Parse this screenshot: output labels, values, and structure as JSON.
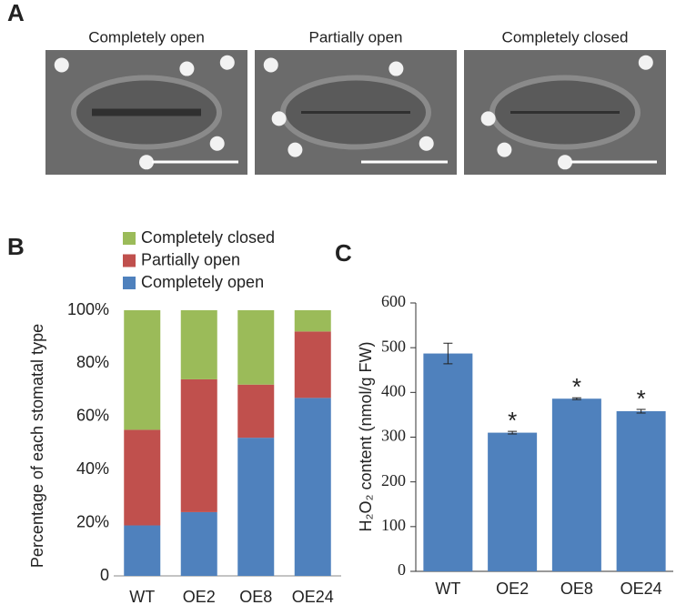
{
  "panels": {
    "a": {
      "letter": "A",
      "images": [
        "Completely open",
        "Partially open",
        "Completely closed"
      ]
    },
    "b": {
      "letter": "B"
    },
    "c": {
      "letter": "C"
    }
  },
  "chart_data": [
    {
      "type": "stacked-bar",
      "ylabel": "Percentage of each stomatal type",
      "categories": [
        "WT",
        "OE2",
        "OE8",
        "OE24"
      ],
      "series": [
        {
          "name": "Completely open",
          "color": "#4f81bd",
          "values": [
            19,
            24,
            52,
            67
          ]
        },
        {
          "name": "Partially open",
          "color": "#c0504d",
          "values": [
            36,
            50,
            20,
            25
          ]
        },
        {
          "name": "Completely closed",
          "color": "#9bbb59",
          "values": [
            45,
            26,
            28,
            8
          ]
        }
      ],
      "ylim": [
        0,
        100
      ],
      "yticks": [
        0,
        {
          "value": 20,
          "label": "20%"
        },
        {
          "value": 40,
          "label": "40%"
        },
        {
          "value": 60,
          "label": "60%"
        },
        {
          "value": 80,
          "label": "80%"
        },
        {
          "value": 100,
          "label": "100%"
        }
      ],
      "legend": "top",
      "grid": false
    },
    {
      "type": "bar",
      "ylabel": "H₂O₂ content (nmol/g FW)",
      "categories": [
        "WT",
        "OE2",
        "OE8",
        "OE24"
      ],
      "values": [
        487,
        310,
        386,
        358
      ],
      "errors": [
        23,
        3,
        2,
        4
      ],
      "annotations": [
        null,
        "*",
        "*",
        "*"
      ],
      "color": "#4f81bd",
      "ylim": [
        0,
        600
      ],
      "yticks": [
        0,
        100,
        200,
        300,
        400,
        500,
        600
      ],
      "grid": false
    }
  ]
}
